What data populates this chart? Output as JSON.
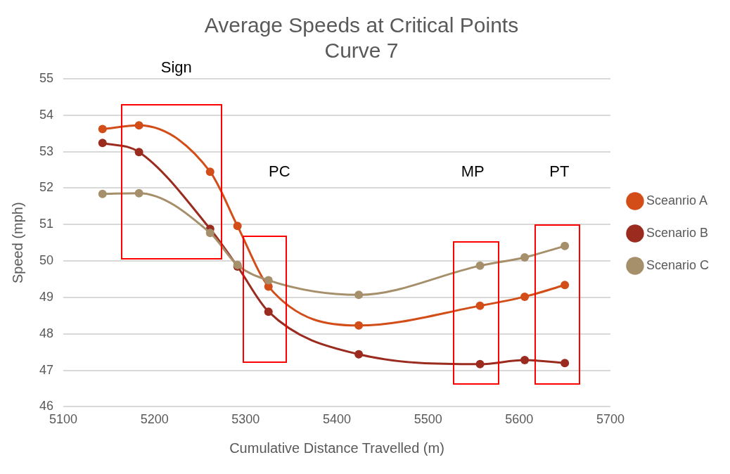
{
  "chart_data": {
    "type": "line",
    "title": "Average Speeds at Critical Points\nCurve 7",
    "xlabel": "Cumulative Distance Travelled (m)",
    "ylabel": "Speed (mph)",
    "x": [
      5143,
      5183,
      5261,
      5291,
      5325,
      5424,
      5557,
      5606,
      5650
    ],
    "series": [
      {
        "name": "Sceanrio A",
        "color": "#d24d18",
        "values": [
          53.62,
          53.72,
          52.45,
          50.96,
          49.3,
          48.23,
          48.77,
          49.02,
          49.34
        ]
      },
      {
        "name": "Scenario B",
        "color": "#9a2b1e",
        "values": [
          53.24,
          52.99,
          50.88,
          49.85,
          48.61,
          47.44,
          47.17,
          47.28,
          47.2
        ]
      },
      {
        "name": "Scenario C",
        "color": "#a68f6b",
        "values": [
          51.84,
          51.86,
          50.77,
          49.89,
          49.47,
          49.07,
          49.87,
          50.1,
          50.41
        ]
      }
    ],
    "xlim": [
      5100,
      5700
    ],
    "xticks": [
      5100,
      5200,
      5300,
      5400,
      5500,
      5600,
      5700
    ],
    "ylim": [
      46,
      55
    ],
    "yticks": [
      46,
      47,
      48,
      49,
      50,
      51,
      52,
      53,
      54,
      55
    ],
    "grid": "y",
    "legend": "right",
    "marker": "circle",
    "line_style": "solid",
    "annotations": [
      "Sign",
      "PC",
      "MP",
      "PT"
    ]
  }
}
